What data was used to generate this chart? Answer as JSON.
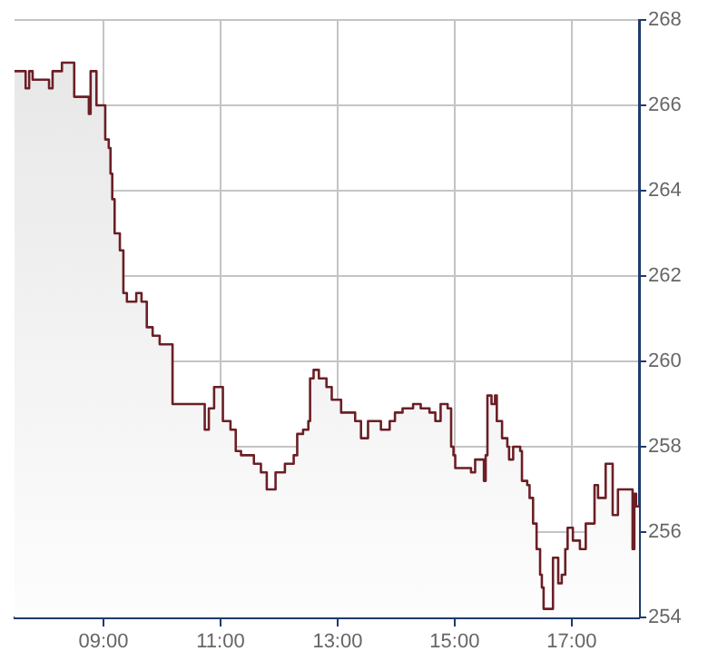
{
  "chart_data": {
    "type": "area",
    "x": [
      7.48,
      7.67,
      7.67,
      7.73,
      7.73,
      7.79,
      7.79,
      8.07,
      8.07,
      8.13,
      8.13,
      8.29,
      8.29,
      8.5,
      8.5,
      8.75,
      8.75,
      8.78,
      8.78,
      8.88,
      8.88,
      9.03,
      9.03,
      9.09,
      9.09,
      9.12,
      9.12,
      9.15,
      9.15,
      9.19,
      9.19,
      9.28,
      9.28,
      9.34,
      9.34,
      9.4,
      9.4,
      9.56,
      9.56,
      9.65,
      9.65,
      9.74,
      9.74,
      9.84,
      9.84,
      9.96,
      9.96,
      10.18,
      10.18,
      10.73,
      10.73,
      10.8,
      10.8,
      10.89,
      10.89,
      11.04,
      11.04,
      11.17,
      11.17,
      11.26,
      11.26,
      11.35,
      11.35,
      11.57,
      11.57,
      11.69,
      11.69,
      11.79,
      11.79,
      11.94,
      11.94,
      12.1,
      12.1,
      12.25,
      12.25,
      12.31,
      12.31,
      12.41,
      12.41,
      12.5,
      12.5,
      12.53,
      12.53,
      12.59,
      12.59,
      12.68,
      12.68,
      12.81,
      12.81,
      12.9,
      12.9,
      13.06,
      13.06,
      13.3,
      13.3,
      13.4,
      13.4,
      13.52,
      13.52,
      13.74,
      13.74,
      13.89,
      13.89,
      13.98,
      13.98,
      14.11,
      14.11,
      14.29,
      14.29,
      14.42,
      14.42,
      14.57,
      14.57,
      14.67,
      14.67,
      14.76,
      14.76,
      14.88,
      14.88,
      14.94,
      14.94,
      14.98,
      14.98,
      15.01,
      15.01,
      15.28,
      15.28,
      15.35,
      15.35,
      15.5,
      15.5,
      15.53,
      15.53,
      15.56,
      15.56,
      15.63,
      15.63,
      15.69,
      15.69,
      15.72,
      15.72,
      15.81,
      15.81,
      15.9,
      15.9,
      15.93,
      15.93,
      16.0,
      16.0,
      16.12,
      16.12,
      16.15,
      16.15,
      16.24,
      16.24,
      16.28,
      16.28,
      16.34,
      16.34,
      16.4,
      16.4,
      16.46,
      16.46,
      16.49,
      16.49,
      16.52,
      16.52,
      16.68,
      16.68,
      16.77,
      16.77,
      16.83,
      16.83,
      16.89,
      16.89,
      16.93,
      16.93,
      17.02,
      17.02,
      17.14,
      17.14,
      17.24,
      17.24,
      17.39,
      17.39,
      17.45,
      17.45,
      17.58,
      17.58,
      17.7,
      17.7,
      17.79,
      17.79,
      18.04,
      18.04,
      18.07,
      18.07,
      18.1,
      18.1,
      18.15
    ],
    "series": [
      {
        "color": "#6b1f25",
        "values": [
          266.8,
          266.8,
          266.4,
          266.4,
          266.8,
          266.8,
          266.6,
          266.6,
          266.4,
          266.4,
          266.8,
          266.8,
          267.0,
          267.0,
          266.2,
          266.2,
          265.8,
          265.8,
          266.8,
          266.8,
          266.0,
          266.0,
          265.2,
          265.2,
          265.0,
          265.0,
          264.4,
          264.4,
          263.8,
          263.8,
          263.0,
          263.0,
          262.6,
          262.6,
          261.6,
          261.6,
          261.4,
          261.4,
          261.6,
          261.6,
          261.4,
          261.4,
          260.8,
          260.8,
          260.6,
          260.6,
          260.4,
          260.4,
          259.0,
          259.0,
          258.4,
          258.4,
          258.9,
          258.9,
          259.4,
          259.4,
          258.6,
          258.6,
          258.4,
          258.4,
          257.9,
          257.9,
          257.8,
          257.8,
          257.6,
          257.6,
          257.4,
          257.4,
          257.0,
          257.0,
          257.4,
          257.4,
          257.6,
          257.6,
          257.8,
          257.8,
          258.3,
          258.3,
          258.4,
          258.4,
          258.6,
          258.6,
          259.6,
          259.6,
          259.8,
          259.8,
          259.6,
          259.6,
          259.4,
          259.4,
          259.1,
          259.1,
          258.8,
          258.8,
          258.6,
          258.6,
          258.2,
          258.2,
          258.6,
          258.6,
          258.4,
          258.4,
          258.6,
          258.6,
          258.8,
          258.8,
          258.9,
          258.9,
          259.0,
          259.0,
          258.9,
          258.9,
          258.8,
          258.8,
          258.6,
          258.6,
          259.0,
          259.0,
          258.9,
          258.9,
          258.0,
          258.0,
          257.8,
          257.8,
          257.5,
          257.5,
          257.4,
          257.4,
          257.7,
          257.7,
          257.2,
          257.2,
          257.8,
          257.8,
          259.2,
          259.2,
          259.0,
          259.0,
          259.2,
          259.2,
          258.6,
          258.6,
          258.2,
          258.2,
          258.0,
          258.0,
          257.7,
          257.7,
          258.0,
          258.0,
          257.9,
          257.9,
          257.2,
          257.2,
          257.1,
          257.1,
          256.8,
          256.8,
          256.2,
          256.2,
          255.6,
          255.6,
          255.0,
          255.0,
          254.7,
          254.7,
          254.2,
          254.2,
          255.4,
          255.4,
          254.8,
          254.8,
          255.0,
          255.0,
          255.6,
          255.6,
          256.1,
          256.1,
          255.8,
          255.8,
          255.6,
          255.6,
          256.2,
          256.2,
          257.1,
          257.1,
          256.8,
          256.8,
          257.6,
          257.6,
          256.4,
          256.4,
          257.0,
          257.0,
          255.6,
          255.6,
          256.9,
          256.9,
          256.6,
          256.6
        ]
      }
    ],
    "xlim": [
      7.48,
      18.15
    ],
    "xticks": [
      {
        "value": 9,
        "label": "09:00"
      },
      {
        "value": 11,
        "label": "11:00"
      },
      {
        "value": 13,
        "label": "13:00"
      },
      {
        "value": 15,
        "label": "15:00"
      },
      {
        "value": 17,
        "label": "17:00"
      }
    ],
    "ylim": [
      254,
      268
    ],
    "yticks": [
      254,
      256,
      258,
      260,
      262,
      264,
      266,
      268
    ],
    "grid": true,
    "legend": false,
    "marker": "none",
    "line_style": "solid"
  }
}
